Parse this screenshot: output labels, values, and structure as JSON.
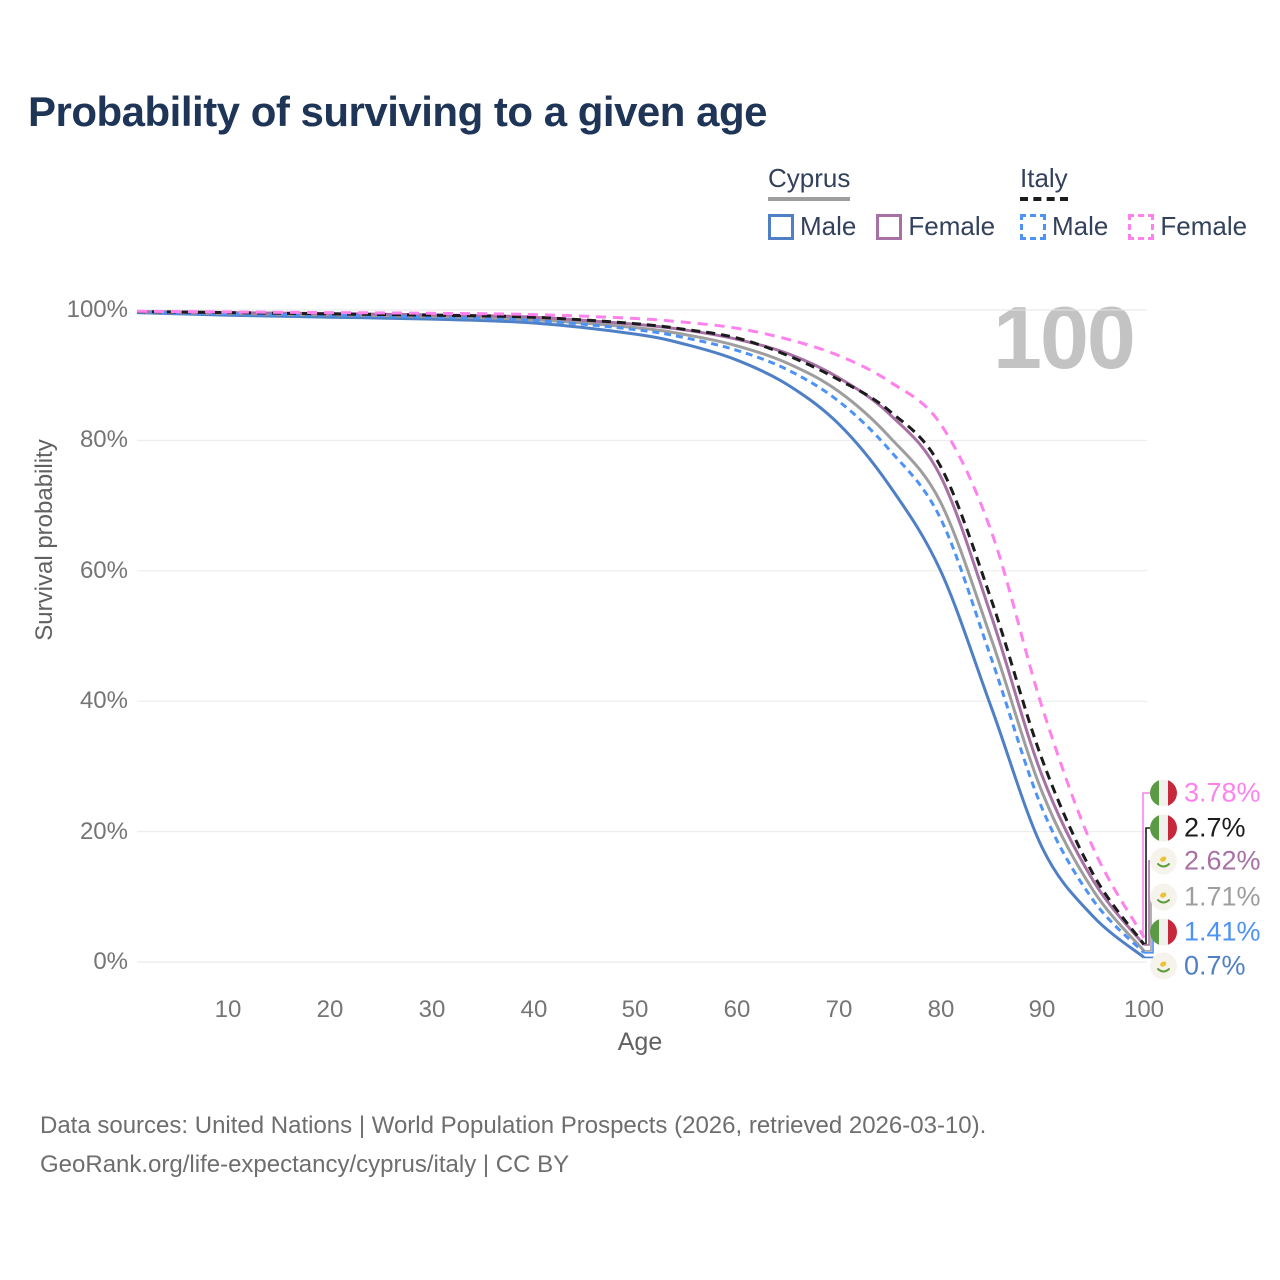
{
  "title": "Probability of surviving to a given age",
  "watermark": "100",
  "legend": {
    "groups": [
      {
        "label": "Cyprus",
        "style": "solid",
        "underline_color": "#9e9e9e",
        "items": [
          {
            "label": "Male",
            "color": "#4f80c6"
          },
          {
            "label": "Female",
            "color": "#a771a6"
          }
        ]
      },
      {
        "label": "Italy",
        "style": "dashed",
        "underline_color": "#1c1c1c",
        "items": [
          {
            "label": "Male",
            "color": "#4d93f5"
          },
          {
            "label": "Female",
            "color": "#fe81ee"
          }
        ]
      }
    ]
  },
  "axes": {
    "y_label": "Survival probability",
    "x_label": "Age",
    "y_ticks": [
      "100%",
      "80%",
      "60%",
      "40%",
      "20%",
      "0%"
    ],
    "x_ticks": [
      "10",
      "20",
      "30",
      "40",
      "50",
      "60",
      "70",
      "80",
      "90",
      "100"
    ]
  },
  "end_labels": [
    {
      "value": "3.78%",
      "color": "#fe81ee",
      "country": "italy",
      "series": "italy_female"
    },
    {
      "value": "2.7%",
      "color": "#1c1c1c",
      "country": "italy",
      "series": "italy_all"
    },
    {
      "value": "2.62%",
      "color": "#a771a6",
      "country": "cyprus",
      "series": "cyprus_female"
    },
    {
      "value": "1.71%",
      "color": "#9e9e9e",
      "country": "cyprus",
      "series": "cyprus_all"
    },
    {
      "value": "1.41%",
      "color": "#4d93f5",
      "country": "italy",
      "series": "italy_male"
    },
    {
      "value": "0.7%",
      "color": "#4f80c6",
      "country": "cyprus",
      "series": "cyprus_male"
    }
  ],
  "footer": {
    "line1": "Data sources: United Nations | World Population Prospects (2026, retrieved 2026-03-10).",
    "line2": "GeoRank.org/life-expectancy/cyprus/italy | CC BY"
  },
  "chart_data": {
    "type": "line",
    "title": "Probability of surviving to a given age",
    "xlabel": "Age",
    "ylabel": "Survival probability",
    "xlim": [
      1,
      100
    ],
    "ylim": [
      0,
      100
    ],
    "grid": "horizontal",
    "legend_position": "top-right",
    "y_tick_values": [
      0,
      20,
      40,
      60,
      80,
      100
    ],
    "x_tick_values": [
      10,
      20,
      30,
      40,
      50,
      60,
      70,
      80,
      90,
      100
    ],
    "series": [
      {
        "id": "cyprus_male",
        "name": "Cyprus Male",
        "color": "#4f80c6",
        "dash": "",
        "final_value_pct": 0.7,
        "points": [
          [
            1,
            99.6
          ],
          [
            10,
            99.2
          ],
          [
            20,
            98.9
          ],
          [
            30,
            98.6
          ],
          [
            40,
            98.0
          ],
          [
            50,
            96.3
          ],
          [
            55,
            94.7
          ],
          [
            60,
            92.3
          ],
          [
            65,
            88.5
          ],
          [
            70,
            82.5
          ],
          [
            75,
            73.0
          ],
          [
            80,
            60.0
          ],
          [
            85,
            39.0
          ],
          [
            90,
            17.5
          ],
          [
            95,
            7.0
          ],
          [
            100,
            0.7
          ]
        ]
      },
      {
        "id": "cyprus_all",
        "name": "Cyprus",
        "color": "#9e9e9e",
        "dash": "",
        "final_value_pct": 1.71,
        "points": [
          [
            1,
            99.7
          ],
          [
            10,
            99.45
          ],
          [
            20,
            99.25
          ],
          [
            30,
            99.0
          ],
          [
            40,
            98.5
          ],
          [
            50,
            97.3
          ],
          [
            55,
            96.2
          ],
          [
            60,
            94.5
          ],
          [
            65,
            91.8
          ],
          [
            70,
            87.5
          ],
          [
            75,
            80.5
          ],
          [
            80,
            70.5
          ],
          [
            85,
            49.5
          ],
          [
            90,
            26.0
          ],
          [
            95,
            11.0
          ],
          [
            100,
            1.71
          ]
        ]
      },
      {
        "id": "cyprus_female",
        "name": "Cyprus Female",
        "color": "#a771a6",
        "dash": "",
        "final_value_pct": 2.62,
        "points": [
          [
            1,
            99.75
          ],
          [
            10,
            99.6
          ],
          [
            20,
            99.45
          ],
          [
            30,
            99.25
          ],
          [
            40,
            98.9
          ],
          [
            50,
            97.8
          ],
          [
            55,
            96.9
          ],
          [
            60,
            95.5
          ],
          [
            65,
            93.3
          ],
          [
            70,
            89.6
          ],
          [
            75,
            84.0
          ],
          [
            80,
            74.5
          ],
          [
            85,
            53.0
          ],
          [
            90,
            28.5
          ],
          [
            95,
            12.5
          ],
          [
            100,
            2.62
          ]
        ]
      },
      {
        "id": "italy_male",
        "name": "Italy Male",
        "color": "#4d93f5",
        "dash": "7 5",
        "final_value_pct": 1.41,
        "points": [
          [
            1,
            99.7
          ],
          [
            10,
            99.4
          ],
          [
            20,
            99.2
          ],
          [
            30,
            98.9
          ],
          [
            40,
            98.4
          ],
          [
            50,
            97.0
          ],
          [
            55,
            95.7
          ],
          [
            60,
            93.8
          ],
          [
            65,
            90.8
          ],
          [
            70,
            86.0
          ],
          [
            75,
            78.5
          ],
          [
            80,
            68.0
          ],
          [
            85,
            46.5
          ],
          [
            90,
            23.5
          ],
          [
            95,
            9.5
          ],
          [
            100,
            1.41
          ]
        ]
      },
      {
        "id": "italy_all",
        "name": "Italy",
        "color": "#1c1c1c",
        "dash": "9 6",
        "final_value_pct": 2.7,
        "points": [
          [
            1,
            99.75
          ],
          [
            10,
            99.6
          ],
          [
            20,
            99.4
          ],
          [
            30,
            99.2
          ],
          [
            40,
            98.9
          ],
          [
            50,
            97.9
          ],
          [
            55,
            97.0
          ],
          [
            60,
            95.7
          ],
          [
            65,
            93.0
          ],
          [
            70,
            89.3
          ],
          [
            75,
            84.5
          ],
          [
            80,
            76.0
          ],
          [
            85,
            55.5
          ],
          [
            90,
            31.0
          ],
          [
            95,
            13.5
          ],
          [
            100,
            2.7
          ]
        ]
      },
      {
        "id": "italy_female",
        "name": "Italy Female",
        "color": "#fe81ee",
        "dash": "10 7",
        "final_value_pct": 3.78,
        "points": [
          [
            1,
            99.8
          ],
          [
            10,
            99.7
          ],
          [
            20,
            99.6
          ],
          [
            30,
            99.5
          ],
          [
            40,
            99.3
          ],
          [
            50,
            98.7
          ],
          [
            55,
            98.1
          ],
          [
            60,
            97.2
          ],
          [
            65,
            95.5
          ],
          [
            70,
            93.0
          ],
          [
            75,
            89.0
          ],
          [
            80,
            82.5
          ],
          [
            85,
            66.0
          ],
          [
            90,
            39.0
          ],
          [
            95,
            17.5
          ],
          [
            100,
            3.78
          ]
        ]
      }
    ]
  }
}
